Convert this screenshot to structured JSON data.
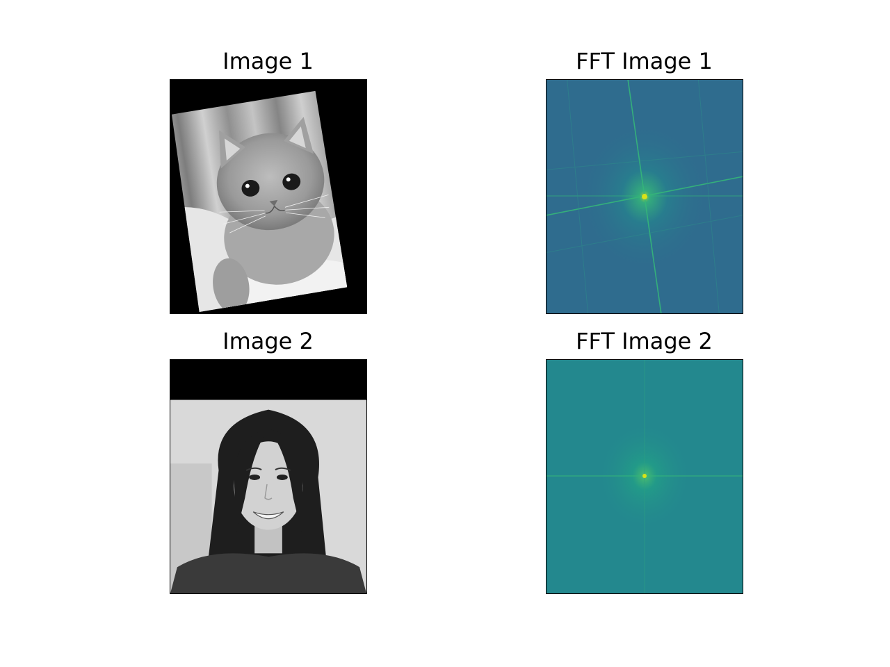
{
  "figure": {
    "panels": [
      {
        "title": "Image 1",
        "content": "rotated grayscale photo of a cat"
      },
      {
        "title": "FFT Image 1",
        "content": "fft magnitude spectrum",
        "colormap": "viridis"
      },
      {
        "title": "Image 2",
        "content": "grayscale portrait photo"
      },
      {
        "title": "FFT Image 2",
        "content": "fft magnitude spectrum",
        "colormap": "viridis"
      }
    ]
  },
  "colors": {
    "fft1_base": "#2f6c8e",
    "fft2_base": "#23888e",
    "fft_peak": "#b5de2b",
    "fft_line": "#35b779"
  }
}
